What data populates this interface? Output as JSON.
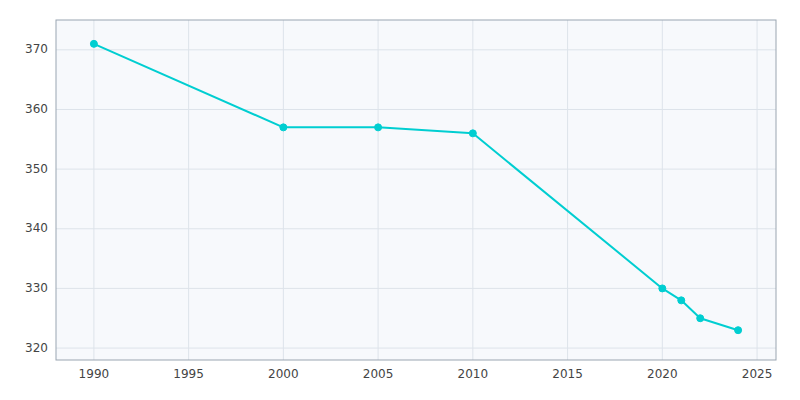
{
  "chart_data": {
    "type": "line",
    "x": [
      1990,
      2000,
      2005,
      2010,
      2020,
      2021,
      2022,
      2024
    ],
    "values": [
      371,
      357,
      357,
      356,
      330,
      328,
      325,
      323
    ],
    "color": "#00CED1",
    "marker": "circle",
    "xlim": [
      1988,
      2026
    ],
    "ylim": [
      318,
      375
    ],
    "xticks": [
      1990,
      1995,
      2000,
      2005,
      2010,
      2015,
      2020,
      2025
    ],
    "yticks": [
      320,
      330,
      340,
      350,
      360,
      370
    ],
    "grid": true
  }
}
